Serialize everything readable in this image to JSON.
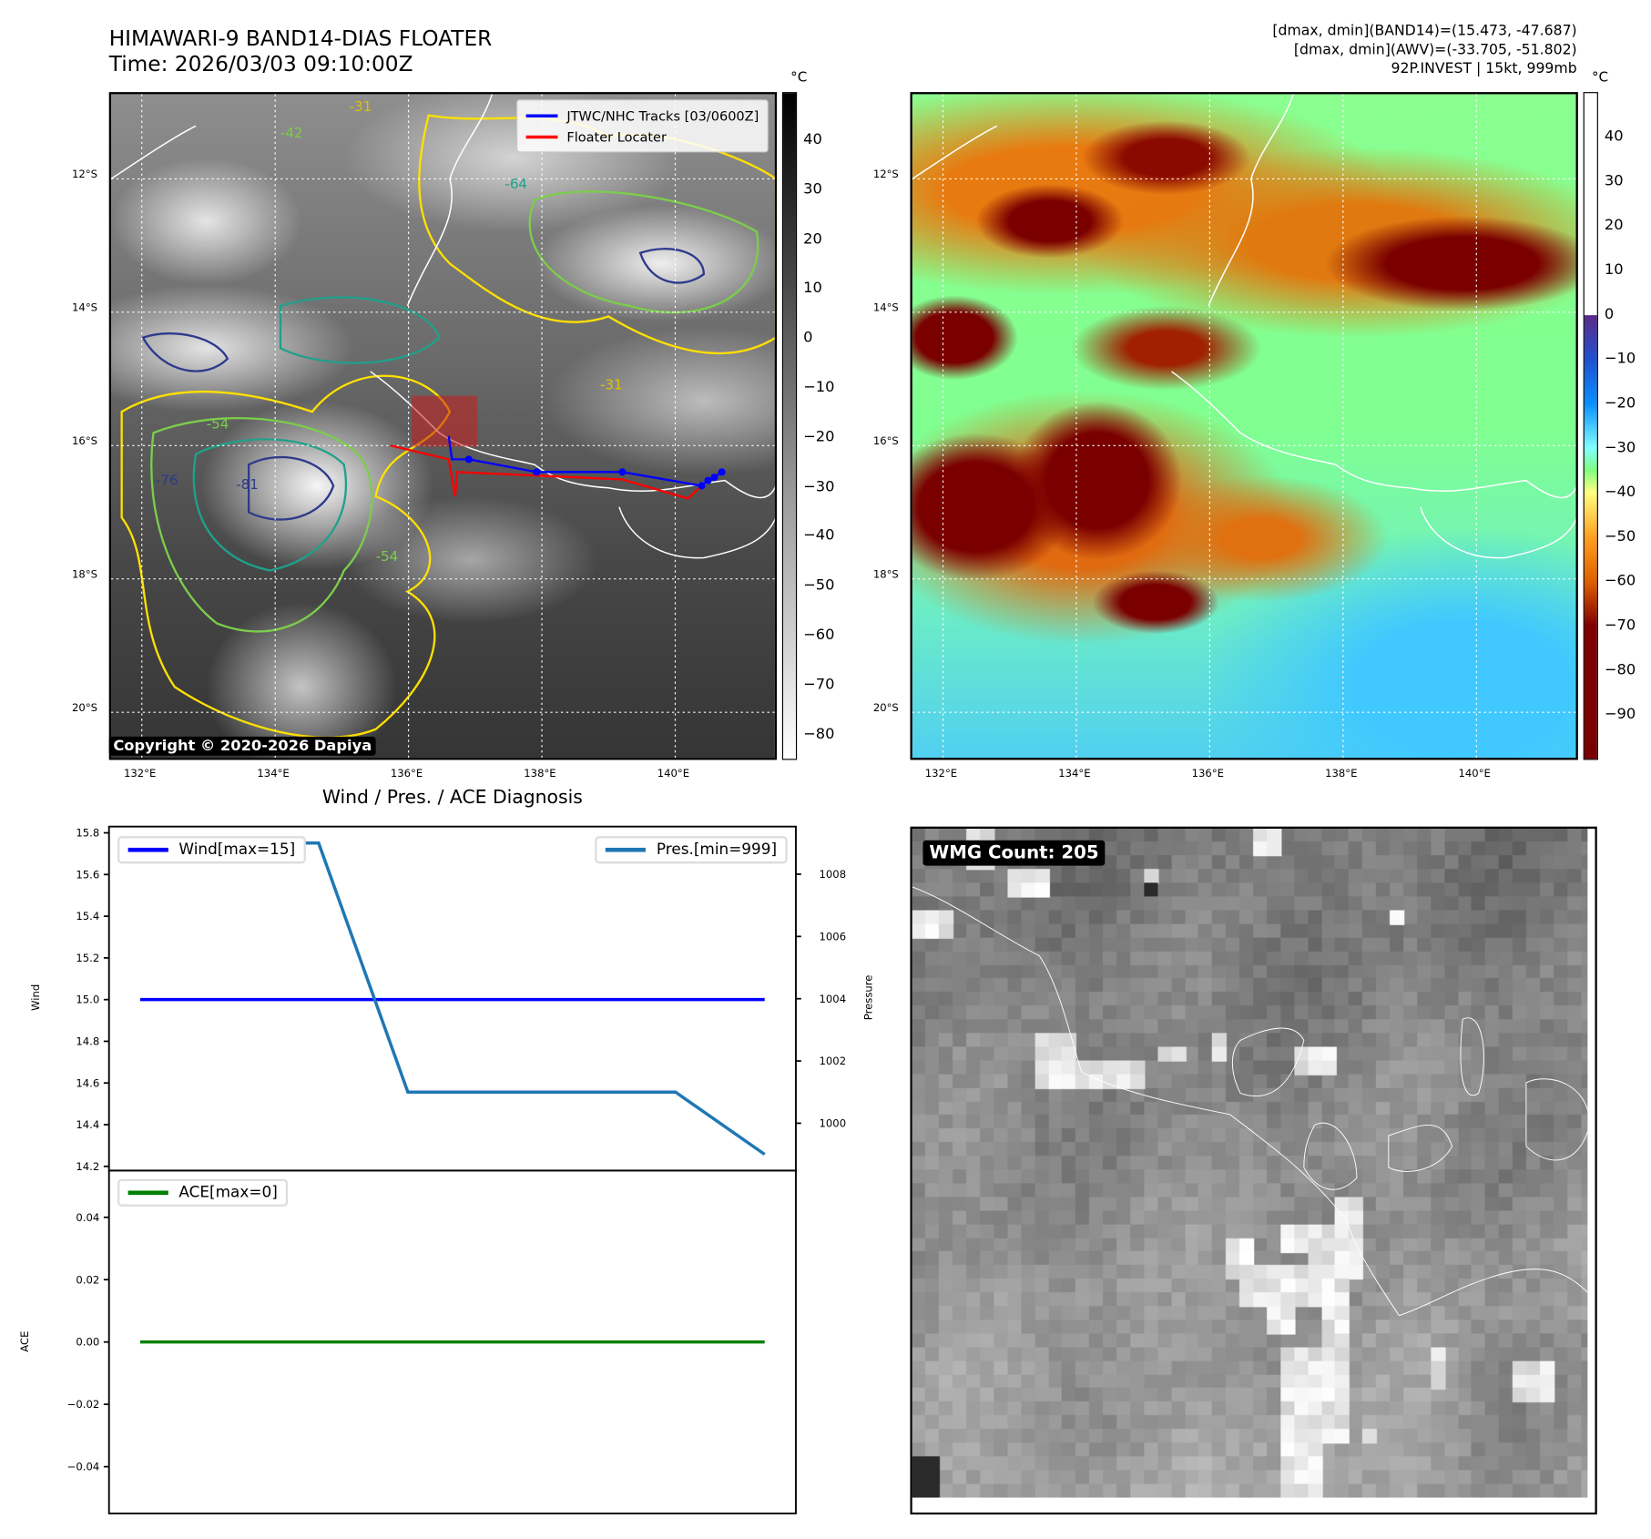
{
  "title": {
    "line1": "HIMAWARI-9 BAND14-DIAS FLOATER",
    "line2": "Time: 2026/03/03 09:10:00Z"
  },
  "stats": {
    "line1": "[dmax, dmin](BAND14)=(15.473, -47.687)",
    "line2": "[dmax, dmin](AWV)=(-33.705, -51.802)",
    "line3": "92P.INVEST | 15kt, 999mb"
  },
  "map_left": {
    "unit": "°C",
    "colorbar_ticks": [
      "40",
      "30",
      "20",
      "10",
      "0",
      "−10",
      "−20",
      "−30",
      "−40",
      "−50",
      "−60",
      "−70",
      "−80"
    ],
    "lat_labels": [
      "12°S",
      "14°S",
      "16°S",
      "18°S",
      "20°S"
    ],
    "lon_labels": [
      "132°E",
      "134°E",
      "136°E",
      "138°E",
      "140°E"
    ],
    "legend": [
      {
        "label": "JTWC/NHC Tracks [03/0600Z]",
        "color": "#0000ff"
      },
      {
        "label": "Floater Locater",
        "color": "#ff0000"
      }
    ],
    "contour_labels": [
      "-31",
      "-42",
      "-54",
      "-64",
      "-76",
      "-81",
      "-54",
      "-31"
    ],
    "copyright": "Copyright © 2020-2026 Dapiya"
  },
  "map_right": {
    "unit": "°C",
    "colorbar_ticks": [
      "40",
      "30",
      "20",
      "10",
      "0",
      "−10",
      "−20",
      "−30",
      "−40",
      "−50",
      "−60",
      "−70",
      "−80",
      "−90"
    ],
    "lat_labels": [
      "12°S",
      "14°S",
      "16°S",
      "18°S",
      "20°S"
    ],
    "lon_labels": [
      "132°E",
      "134°E",
      "136°E",
      "138°E",
      "140°E"
    ]
  },
  "wmg": {
    "label": "WMG Count: 205"
  },
  "chart_data": {
    "type": "line",
    "title": "Wind / Pres. / ACE Diagnosis",
    "x": [
      0,
      1,
      2,
      3,
      4,
      5,
      6,
      7
    ],
    "xlim": [
      -0.35,
      7.35
    ],
    "panels": [
      {
        "ylabel": "Wind",
        "ylim": [
          14.18,
          15.83
        ],
        "yticks": [
          "15.8",
          "15.6",
          "15.4",
          "15.2",
          "15.0",
          "14.8",
          "14.6",
          "14.4",
          "14.2"
        ],
        "series": [
          {
            "name": "Wind[max=15]",
            "color": "#0000ff",
            "values": [
              15,
              15,
              15,
              15,
              15,
              15,
              15,
              15
            ]
          }
        ],
        "legend": "top-left",
        "secondary": {
          "ylabel": "Pressure",
          "ylim": [
            998.48,
            1009.53
          ],
          "yticks": [
            "1008",
            "1006",
            "1004",
            "1002",
            "1000"
          ],
          "series": [
            {
              "name": "Pres.[min=999]",
              "color": "#1f77b4",
              "values": [
                1009,
                1009,
                1009,
                1001,
                1001,
                1001,
                1001,
                999
              ]
            }
          ],
          "legend": "top-right"
        }
      },
      {
        "ylabel": "ACE",
        "ylim": [
          -0.055,
          0.055
        ],
        "yticks": [
          "0.04",
          "0.02",
          "0.00",
          "−0.02",
          "−0.04"
        ],
        "series": [
          {
            "name": "ACE[max=0]",
            "color": "#008000",
            "values": [
              0,
              0,
              0,
              0,
              0,
              0,
              0,
              0
            ]
          }
        ],
        "legend": "top-left"
      }
    ]
  }
}
